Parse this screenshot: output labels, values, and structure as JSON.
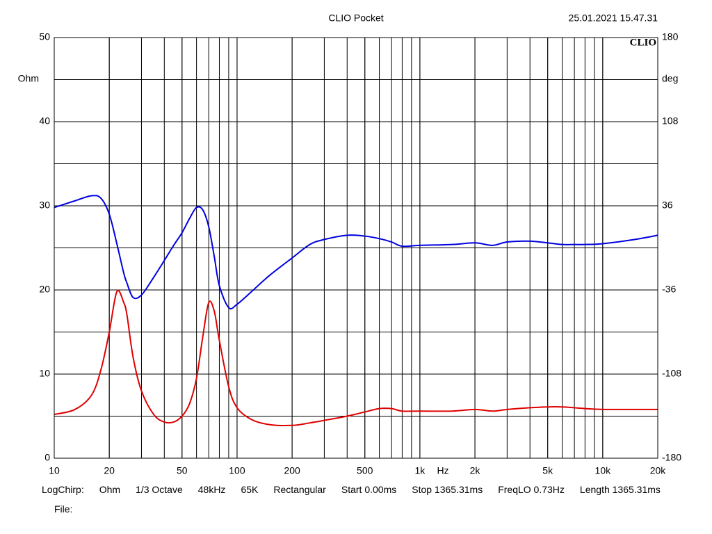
{
  "chart_data": {
    "type": "line",
    "title": "CLIO Pocket",
    "timestamp": "25.01.2021 15.47.31",
    "logo": "CLIO",
    "x_label": "Hz",
    "y_label": "Ohm",
    "y2_label": "deg",
    "x_scale": "log",
    "grid": true,
    "x": [
      10,
      13,
      16,
      18,
      20,
      22,
      24,
      25,
      27,
      30,
      35,
      40,
      45,
      50,
      55,
      60,
      65,
      70,
      75,
      80,
      90,
      100,
      120,
      150,
      200,
      250,
      300,
      400,
      500,
      600,
      700,
      800,
      1000,
      1500,
      2000,
      2500,
      3000,
      4000,
      5000,
      6000,
      7000,
      8000,
      10000,
      15000,
      20000
    ],
    "series": [
      {
        "color": "#0000e0",
        "values": [
          29.8,
          30.6,
          31.2,
          30.9,
          29.0,
          25.5,
          22,
          20.8,
          19.1,
          19.4,
          21.5,
          23.5,
          25.3,
          26.8,
          28.5,
          29.8,
          29.5,
          27.5,
          24,
          20.5,
          17.9,
          18.3,
          19.8,
          21.7,
          23.8,
          25.4,
          26,
          26.5,
          26.4,
          26.1,
          25.7,
          25.2,
          25.3,
          25.4,
          25.6,
          25.3,
          25.7,
          25.8,
          25.6,
          25.4,
          25.4,
          25.4,
          25.5,
          26.0,
          26.5
        ]
      },
      {
        "color": "#e00000",
        "values": [
          5.2,
          5.8,
          7.5,
          10.5,
          15,
          19.8,
          18.5,
          17,
          12,
          8,
          5.2,
          4.3,
          4.3,
          5,
          6.5,
          9.5,
          14.5,
          18.5,
          17.5,
          14,
          8.5,
          6,
          4.6,
          4.0,
          3.9,
          4.2,
          4.5,
          5.0,
          5.5,
          5.9,
          5.9,
          5.6,
          5.6,
          5.6,
          5.8,
          5.6,
          5.8,
          6.0,
          6.1,
          6.1,
          6.0,
          5.9,
          5.8,
          5.8,
          5.8
        ]
      }
    ],
    "xlim": [
      10,
      20000
    ],
    "xticks": [
      10,
      20,
      50,
      100,
      200,
      500,
      {
        "value": 1000,
        "label": "1k"
      },
      {
        "value": 2000,
        "label": "2k"
      },
      {
        "value": 5000,
        "label": "5k"
      },
      {
        "value": 10000,
        "label": "10k"
      },
      {
        "value": 20000,
        "label": "20k"
      }
    ],
    "ylim": [
      0,
      50
    ],
    "yticks": [
      0,
      10,
      20,
      30,
      40,
      50
    ],
    "y2lim": [
      -180,
      180
    ],
    "y2ticks": [
      -180,
      -108,
      -36,
      36,
      108,
      180
    ],
    "footer": [
      "LogChirp:",
      "Ohm",
      "1/3 Octave",
      "48kHz",
      "65K",
      "Rectangular",
      "Start 0.00ms",
      "Stop 1365.31ms",
      "FreqLO 0.73Hz",
      "Length 1365.31ms"
    ],
    "file_label": "File:"
  }
}
